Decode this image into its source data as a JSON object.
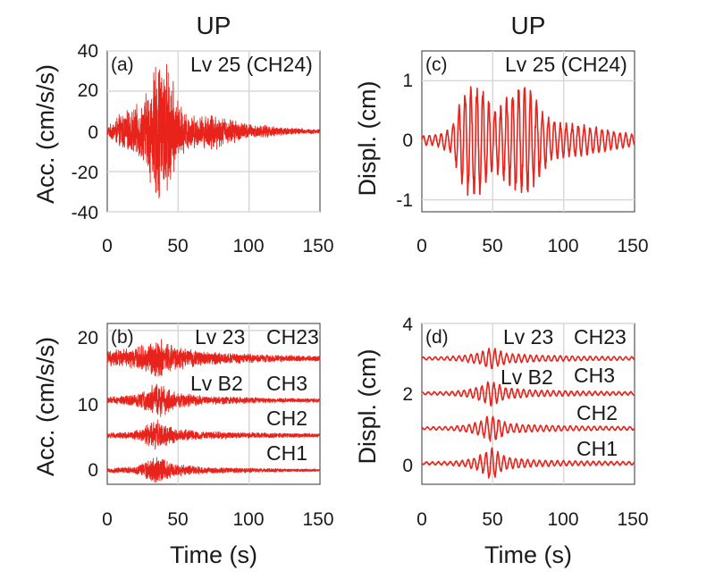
{
  "chart_data": [
    {
      "panel": "(a)",
      "type": "line",
      "title": "UP",
      "xlabel": "",
      "ylabel": "Acc. (cm/s/s)",
      "xlim": [
        0,
        150
      ],
      "ylim": [
        -40,
        40
      ],
      "xticks": [
        "0",
        "50",
        "100",
        "150"
      ],
      "yticks": [
        "40",
        "20",
        "0",
        "-20",
        "-40"
      ],
      "grid": true,
      "color": "#e8231b",
      "annotations": [
        "Lv 25 (CH24)"
      ],
      "series": [
        {
          "offset": 0,
          "envelope": [
            [
              0,
              2
            ],
            [
              5,
              6
            ],
            [
              10,
              10
            ],
            [
              15,
              11
            ],
            [
              20,
              13
            ],
            [
              25,
              16
            ],
            [
              30,
              27
            ],
            [
              35,
              38
            ],
            [
              40,
              40
            ],
            [
              45,
              30
            ],
            [
              50,
              16
            ],
            [
              55,
              11
            ],
            [
              60,
              9
            ],
            [
              65,
              8
            ],
            [
              70,
              9
            ],
            [
              75,
              11
            ],
            [
              80,
              8
            ],
            [
              90,
              6
            ],
            [
              100,
              4
            ],
            [
              115,
              3
            ],
            [
              130,
              2
            ],
            [
              150,
              1
            ]
          ]
        }
      ]
    },
    {
      "panel": "(b)",
      "type": "line",
      "title": "",
      "xlabel": "Time (s)",
      "ylabel": "Acc. (cm/s/s)",
      "xlim": [
        0,
        150
      ],
      "ylim": [
        -2,
        21
      ],
      "xticks": [
        "0",
        "50",
        "100",
        "150"
      ],
      "yticks": [
        "20",
        "10",
        "0"
      ],
      "grid": true,
      "color": "#e8231b",
      "annotations": [
        "Lv 23",
        "CH23",
        "Lv B2",
        "CH3",
        "CH2",
        "CH1"
      ],
      "series": [
        {
          "name": "CH23",
          "offset": 16,
          "envelope": [
            [
              0,
              1.2
            ],
            [
              20,
              1.6
            ],
            [
              30,
              2.5
            ],
            [
              35,
              3.2
            ],
            [
              42,
              2.5
            ],
            [
              50,
              1.8
            ],
            [
              60,
              1.3
            ],
            [
              80,
              0.9
            ],
            [
              110,
              0.6
            ],
            [
              150,
              0.4
            ]
          ]
        },
        {
          "name": "CH3",
          "offset": 10,
          "envelope": [
            [
              0,
              0.5
            ],
            [
              20,
              0.9
            ],
            [
              30,
              2.2
            ],
            [
              35,
              2.8
            ],
            [
              42,
              2
            ],
            [
              50,
              1.1
            ],
            [
              70,
              0.7
            ],
            [
              110,
              0.4
            ],
            [
              150,
              0.3
            ]
          ]
        },
        {
          "name": "CH2",
          "offset": 5,
          "envelope": [
            [
              0,
              0.4
            ],
            [
              20,
              0.7
            ],
            [
              30,
              1.8
            ],
            [
              35,
              2.4
            ],
            [
              42,
              1.8
            ],
            [
              50,
              1
            ],
            [
              70,
              0.6
            ],
            [
              110,
              0.4
            ],
            [
              150,
              0.3
            ]
          ]
        },
        {
          "name": "CH1",
          "offset": 0,
          "envelope": [
            [
              0,
              0.3
            ],
            [
              20,
              0.6
            ],
            [
              30,
              1.6
            ],
            [
              35,
              2.2
            ],
            [
              42,
              1.6
            ],
            [
              50,
              0.9
            ],
            [
              70,
              0.5
            ],
            [
              110,
              0.3
            ],
            [
              150,
              0.2
            ]
          ]
        }
      ]
    },
    {
      "panel": "(c)",
      "type": "line",
      "title": "UP",
      "xlabel": "",
      "ylabel": "Displ. (cm)",
      "xlim": [
        0,
        150
      ],
      "ylim": [
        -1.2,
        1.5
      ],
      "xticks": [
        "0",
        "50",
        "100",
        "150"
      ],
      "yticks": [
        "1",
        "0",
        "-1"
      ],
      "grid": true,
      "color": "#e8231b",
      "annotations": [
        "Lv 25 (CH24)"
      ],
      "series": [
        {
          "offset": 0,
          "envelope": [
            [
              0,
              0.08
            ],
            [
              10,
              0.1
            ],
            [
              20,
              0.22
            ],
            [
              25,
              0.5
            ],
            [
              30,
              0.9
            ],
            [
              35,
              1.05
            ],
            [
              40,
              0.95
            ],
            [
              45,
              0.85
            ],
            [
              50,
              0.55
            ],
            [
              55,
              0.6
            ],
            [
              60,
              0.8
            ],
            [
              65,
              0.95
            ],
            [
              70,
              1.0
            ],
            [
              75,
              0.95
            ],
            [
              80,
              0.75
            ],
            [
              85,
              0.55
            ],
            [
              90,
              0.4
            ],
            [
              100,
              0.3
            ],
            [
              110,
              0.28
            ],
            [
              120,
              0.25
            ],
            [
              130,
              0.2
            ],
            [
              140,
              0.15
            ],
            [
              150,
              0.1
            ]
          ]
        }
      ]
    },
    {
      "panel": "(d)",
      "type": "line",
      "title": "",
      "xlabel": "Time (s)",
      "ylabel": "Displ. (cm)",
      "xlim": [
        0,
        150
      ],
      "ylim": [
        -0.6,
        4
      ],
      "xticks": [
        "0",
        "50",
        "100",
        "150"
      ],
      "yticks": [
        "4",
        "2",
        "0"
      ],
      "grid": true,
      "color": "#e8231b",
      "annotations": [
        "Lv 23",
        "CH23",
        "Lv B2",
        "CH3",
        "CH2",
        "CH1"
      ],
      "series": [
        {
          "name": "CH23",
          "offset": 3,
          "envelope": [
            [
              0,
              0.04
            ],
            [
              20,
              0.06
            ],
            [
              30,
              0.1
            ],
            [
              40,
              0.18
            ],
            [
              48,
              0.32
            ],
            [
              52,
              0.3
            ],
            [
              60,
              0.15
            ],
            [
              80,
              0.1
            ],
            [
              110,
              0.07
            ],
            [
              150,
              0.05
            ]
          ]
        },
        {
          "name": "CH3",
          "offset": 2,
          "envelope": [
            [
              0,
              0.04
            ],
            [
              20,
              0.06
            ],
            [
              30,
              0.1
            ],
            [
              40,
              0.2
            ],
            [
              48,
              0.38
            ],
            [
              52,
              0.34
            ],
            [
              60,
              0.16
            ],
            [
              80,
              0.1
            ],
            [
              110,
              0.07
            ],
            [
              150,
              0.05
            ]
          ]
        },
        {
          "name": "CH2",
          "offset": 1,
          "envelope": [
            [
              0,
              0.04
            ],
            [
              20,
              0.06
            ],
            [
              30,
              0.1
            ],
            [
              40,
              0.2
            ],
            [
              48,
              0.4
            ],
            [
              52,
              0.36
            ],
            [
              60,
              0.16
            ],
            [
              80,
              0.1
            ],
            [
              110,
              0.07
            ],
            [
              150,
              0.05
            ]
          ]
        },
        {
          "name": "CH1",
          "offset": 0,
          "envelope": [
            [
              0,
              0.04
            ],
            [
              20,
              0.06
            ],
            [
              30,
              0.1
            ],
            [
              40,
              0.22
            ],
            [
              48,
              0.48
            ],
            [
              52,
              0.4
            ],
            [
              60,
              0.18
            ],
            [
              80,
              0.1
            ],
            [
              110,
              0.07
            ],
            [
              150,
              0.05
            ]
          ]
        }
      ]
    }
  ]
}
